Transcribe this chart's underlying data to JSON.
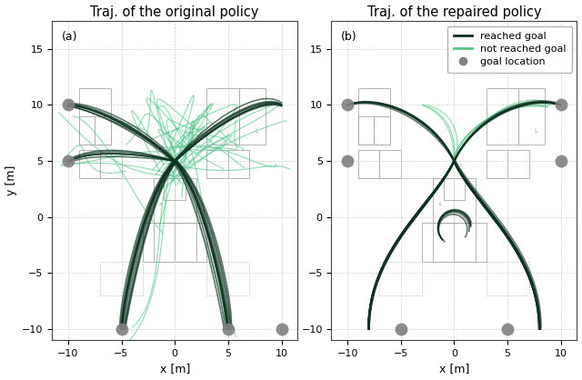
{
  "title_left": "Traj. of the original policy",
  "title_right": "Traj. of the repaired policy",
  "xlabel": "x [m]",
  "ylabel": "y [m]",
  "xlim": [
    -11.5,
    11.5
  ],
  "ylim": [
    -11,
    17.5
  ],
  "xticks": [
    -10,
    -5,
    0,
    5,
    10
  ],
  "yticks": [
    -10,
    -5,
    0,
    5,
    10,
    15
  ],
  "color_reached": "#0d3320",
  "color_not_reached": "#52c688",
  "color_goal": "#808080",
  "goal_locations_left": [
    [
      -10,
      10
    ],
    [
      -10,
      5
    ],
    [
      -5,
      -10
    ],
    [
      5,
      -10
    ],
    [
      10,
      -10
    ]
  ],
  "goal_locations_right": [
    [
      -10,
      10
    ],
    [
      -10,
      5
    ],
    [
      10,
      10
    ],
    [
      10,
      5
    ],
    [
      -5,
      -10
    ],
    [
      5,
      -10
    ]
  ],
  "label_reached": "reached goal",
  "label_not_reached": "not reached goal",
  "label_goal": "goal location",
  "panel_a_label": "(a)",
  "panel_b_label": "(b)",
  "title_fontsize": 10.5,
  "axis_fontsize": 9,
  "legend_fontsize": 8,
  "background_color": "#ffffff",
  "grid_color": "#d0d0d0",
  "figsize": [
    6.4,
    4.18
  ],
  "dpi": 100
}
